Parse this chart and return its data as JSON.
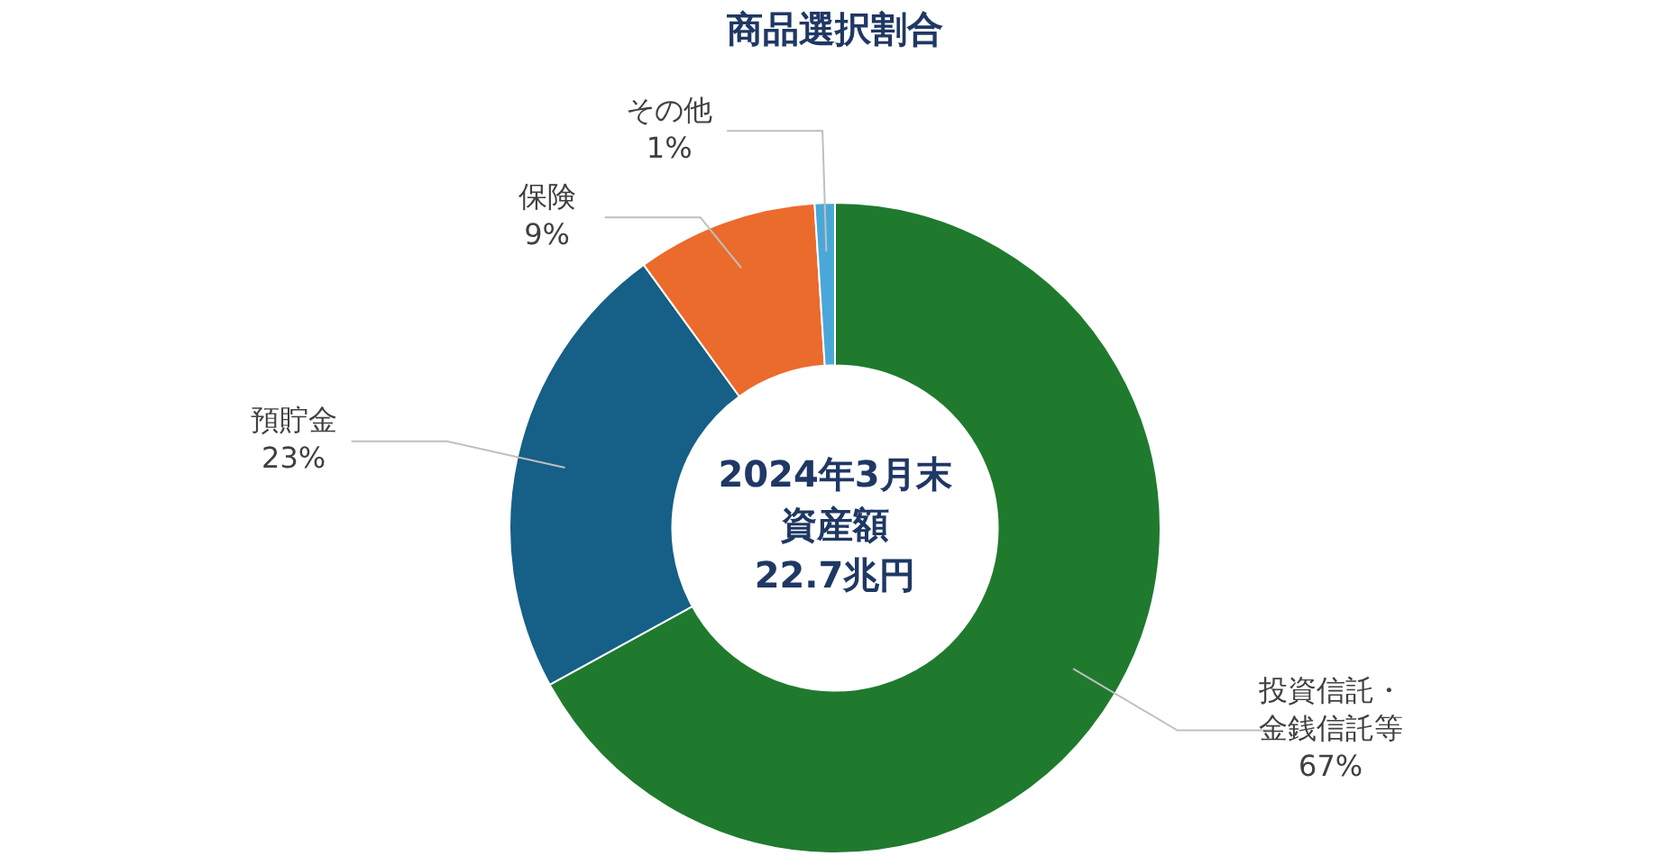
{
  "chart_data": {
    "type": "donut",
    "title": "商品選択割合",
    "categories": [
      "投資信託・金銭信託等",
      "預貯金",
      "保険",
      "その他"
    ],
    "values": [
      67,
      23,
      9,
      1
    ],
    "value_labels": [
      "67%",
      "23%",
      "9%",
      "1%"
    ],
    "colors": [
      "#1f7a2e",
      "#165f86",
      "#eb6b2c",
      "#4aa8d8"
    ],
    "data_labels": true,
    "annotations": [
      "2024年3月末",
      "資産額",
      "22.7兆円"
    ],
    "legend": false
  }
}
